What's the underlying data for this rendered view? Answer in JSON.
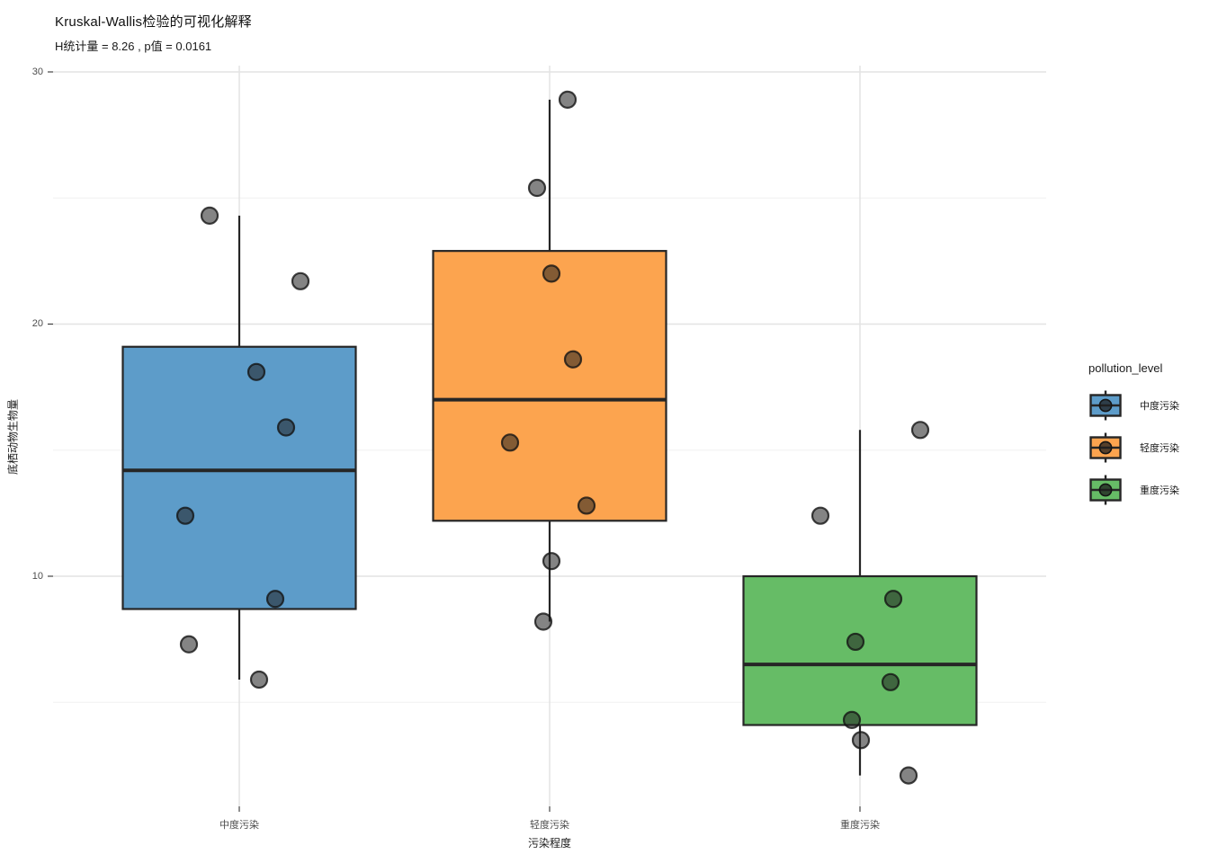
{
  "page": {
    "background": "#ffffff"
  },
  "chart_data": {
    "type": "boxplot",
    "title": "Kruskal-Wallis检验的可视化解释",
    "subtitle": "H统计量 = 8.26 , p值 = 0.0161",
    "xlabel": "污染程度",
    "ylabel": "底栖动物生物量",
    "legend_title": "pollution_level",
    "legend_position": "right",
    "grid": true,
    "y_ticks": [
      10,
      20,
      30
    ],
    "y_minor_ticks": [
      5,
      15,
      25
    ],
    "ylim": [
      0.8,
      30.2
    ],
    "grid_major_color": "#e3e3e3",
    "grid_minor_color": "#f0f0f0",
    "box_stroke": "#262626",
    "tick_mark_color": "#333333",
    "point_style": {
      "fill": "#1f1f1f",
      "fill_opacity": 0.55,
      "stroke": "#141414",
      "stroke_opacity": 0.8,
      "radius": 9
    },
    "groups": [
      {
        "label": "中度污染",
        "color": "#5D9CC9",
        "stats": {
          "whisker_low": 5.9,
          "q1": 8.7,
          "median": 14.2,
          "q3": 19.1,
          "whisker_high": 24.3
        },
        "points": [
          {
            "v": 24.3,
            "dx": -33
          },
          {
            "v": 21.7,
            "dx": 68
          },
          {
            "v": 18.1,
            "dx": 19
          },
          {
            "v": 15.9,
            "dx": 52
          },
          {
            "v": 12.4,
            "dx": -60
          },
          {
            "v": 9.1,
            "dx": 40
          },
          {
            "v": 7.3,
            "dx": -56
          },
          {
            "v": 5.9,
            "dx": 22
          }
        ]
      },
      {
        "label": "轻度污染",
        "color": "#FCA44F",
        "stats": {
          "whisker_low": 8.2,
          "q1": 12.2,
          "median": 17.0,
          "q3": 22.9,
          "whisker_high": 28.9
        },
        "points": [
          {
            "v": 28.9,
            "dx": 20
          },
          {
            "v": 25.4,
            "dx": -14
          },
          {
            "v": 22.0,
            "dx": 2
          },
          {
            "v": 18.6,
            "dx": 26
          },
          {
            "v": 15.3,
            "dx": -44
          },
          {
            "v": 12.8,
            "dx": 41
          },
          {
            "v": 10.6,
            "dx": 2
          },
          {
            "v": 8.2,
            "dx": -7
          }
        ]
      },
      {
        "label": "重度污染",
        "color": "#66BC66",
        "stats": {
          "whisker_low": 2.1,
          "q1": 4.1,
          "median": 6.5,
          "q3": 10.0,
          "whisker_high": 15.8
        },
        "points": [
          {
            "v": 15.8,
            "dx": 67
          },
          {
            "v": 12.4,
            "dx": -44
          },
          {
            "v": 9.1,
            "dx": 37
          },
          {
            "v": 7.4,
            "dx": -5
          },
          {
            "v": 5.8,
            "dx": 34
          },
          {
            "v": 4.3,
            "dx": -9
          },
          {
            "v": 3.5,
            "dx": 1
          },
          {
            "v": 2.1,
            "dx": 54
          }
        ]
      }
    ]
  }
}
